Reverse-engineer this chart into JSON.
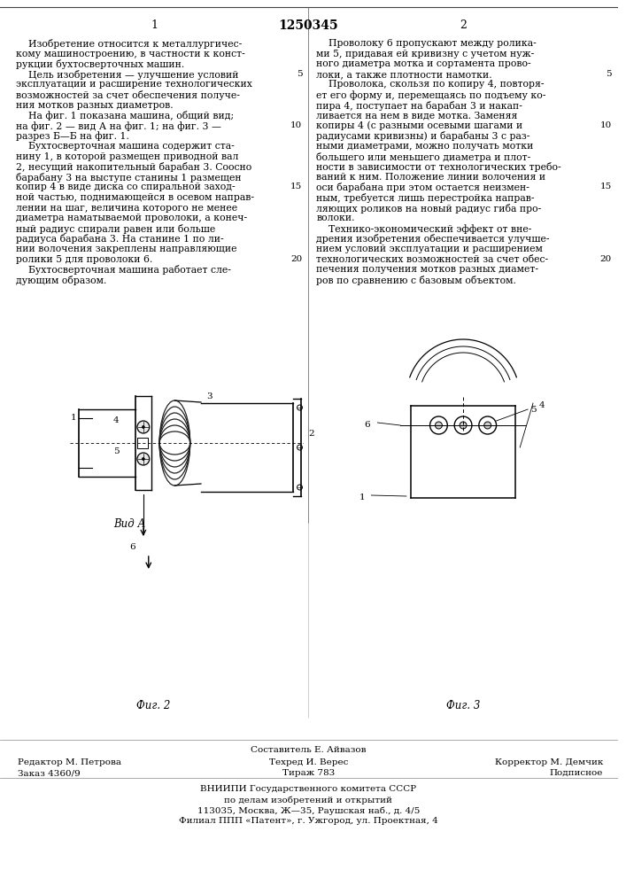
{
  "patent_number": "1250345",
  "page_left": "1",
  "page_right": "2",
  "col1_text": [
    "    Изобретение относится к металлургичес-",
    "кому машиностроению, в частности к конст-",
    "рукции бухтосверточных машин.",
    "    Цель изобретения — улучшение условий",
    "эксплуатации и расширение технологических",
    "возможностей за счет обеспечения получе-",
    "ния мотков разных диаметров.",
    "    На фиг. 1 показана машина, общий вид;",
    "на фиг. 2 — вид А на фиг. 1; на фиг. 3 —",
    "разрез Б—Б на фиг. 1.",
    "    Бухтосверточная машина содержит ста-",
    "нину 1, в которой размещен приводной вал",
    "2, несущий накопительный барабан 3. Соосно",
    "барабану 3 на выступе станины 1 размещен",
    "копир 4 в виде диска со спиральной заход-",
    "ной частью, поднимающейся в осевом направ-",
    "лении на шаг, величина которого не менее",
    "диаметра наматываемой проволоки, а конеч-",
    "ный радиус спирали равен или больше",
    "радиуса барабана 3. На станине 1 по ли-",
    "нии волочения закреплены направляющие",
    "ролики 5 для проволоки 6.",
    "    Бухтосверточная машина работает сле-",
    "дующим образом."
  ],
  "col2_text": [
    "    Проволоку 6 пропускают между ролика-",
    "ми 5, придавая ей кривизну с учетом нуж-",
    "ного диаметра мотка и сортамента прово-",
    "локи, а также плотности намотки.",
    "    Проволока, скользя по копиру 4, повторя-",
    "ет его форму и, перемещаясь по подъему ко-",
    "пира 4, поступает на барабан 3 и накап-",
    "ливается на нем в виде мотка. Заменяя",
    "копиры 4 (с разными осевыми шагами и",
    "радиусами кривизны) и барабаны 3 с раз-",
    "ными диаметрами, можно получать мотки",
    "большего или меньшего диаметра и плот-",
    "ности в зависимости от технологических требо-",
    "ваний к ним. Положение линии волочения и",
    "оси барабана при этом остается неизмен-",
    "ным, требуется лишь перестройка направ-",
    "ляющих роликов на новый радиус гиба про-",
    "волоки.",
    "    Технико-экономический эффект от вне-",
    "дрения изобретения обеспечивается улучше-",
    "нием условий эксплуатации и расширением",
    "технологических возможностей за счет обес-",
    "печения получения мотков разных диамет-",
    "ров по сравнению с базовым объектом."
  ],
  "line_num_map": {
    "3": 5,
    "8": 10,
    "14": 15,
    "21": 20
  },
  "fig2_caption": "Фиг. 2",
  "fig3_caption": "Фиг. 3",
  "fig2_label": "Вид А",
  "bottom_text_line1": "Составитель Е. Айвазов",
  "bottom_text_line2_left": "Редактор М. Петрова",
  "bottom_text_line2_mid": "Техред И. Верес",
  "bottom_text_line2_right": "Корректор М. Демчик",
  "bottom_text_line3_left": "Заказ 4360/9",
  "bottom_text_line3_mid": "Тираж 783",
  "bottom_text_line3_right": "Подписное",
  "bottom_text_line4": "ВНИИПИ Государственного комитета СССР",
  "bottom_text_line5": "по делам изобретений и открытий",
  "bottom_text_line6": "113035, Москва, Ж—35, Раушская наб., д. 4/5",
  "bottom_text_line7": "Филиал ППП «Патент», г. Ужгород, ул. Проектная, 4",
  "bg_color": "#ffffff",
  "text_color": "#000000"
}
